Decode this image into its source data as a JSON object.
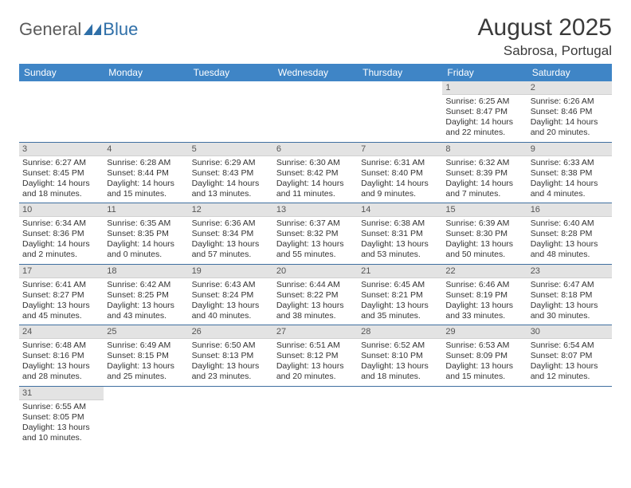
{
  "logo": {
    "general": "General",
    "blue": "Blue"
  },
  "header": {
    "title": "August 2025",
    "location": "Sabrosa, Portugal"
  },
  "colors": {
    "header_bg": "#3f85c6",
    "header_fg": "#ffffff",
    "daynum_bg": "#e3e3e3",
    "row_border": "#3f6fa0",
    "logo_gray": "#5b5b5b",
    "logo_blue": "#2f6fa8"
  },
  "weekdays": [
    "Sunday",
    "Monday",
    "Tuesday",
    "Wednesday",
    "Thursday",
    "Friday",
    "Saturday"
  ],
  "weeks": [
    [
      null,
      null,
      null,
      null,
      null,
      {
        "n": "1",
        "sr": "Sunrise: 6:25 AM",
        "ss": "Sunset: 8:47 PM",
        "dl1": "Daylight: 14 hours",
        "dl2": "and 22 minutes."
      },
      {
        "n": "2",
        "sr": "Sunrise: 6:26 AM",
        "ss": "Sunset: 8:46 PM",
        "dl1": "Daylight: 14 hours",
        "dl2": "and 20 minutes."
      }
    ],
    [
      {
        "n": "3",
        "sr": "Sunrise: 6:27 AM",
        "ss": "Sunset: 8:45 PM",
        "dl1": "Daylight: 14 hours",
        "dl2": "and 18 minutes."
      },
      {
        "n": "4",
        "sr": "Sunrise: 6:28 AM",
        "ss": "Sunset: 8:44 PM",
        "dl1": "Daylight: 14 hours",
        "dl2": "and 15 minutes."
      },
      {
        "n": "5",
        "sr": "Sunrise: 6:29 AM",
        "ss": "Sunset: 8:43 PM",
        "dl1": "Daylight: 14 hours",
        "dl2": "and 13 minutes."
      },
      {
        "n": "6",
        "sr": "Sunrise: 6:30 AM",
        "ss": "Sunset: 8:42 PM",
        "dl1": "Daylight: 14 hours",
        "dl2": "and 11 minutes."
      },
      {
        "n": "7",
        "sr": "Sunrise: 6:31 AM",
        "ss": "Sunset: 8:40 PM",
        "dl1": "Daylight: 14 hours",
        "dl2": "and 9 minutes."
      },
      {
        "n": "8",
        "sr": "Sunrise: 6:32 AM",
        "ss": "Sunset: 8:39 PM",
        "dl1": "Daylight: 14 hours",
        "dl2": "and 7 minutes."
      },
      {
        "n": "9",
        "sr": "Sunrise: 6:33 AM",
        "ss": "Sunset: 8:38 PM",
        "dl1": "Daylight: 14 hours",
        "dl2": "and 4 minutes."
      }
    ],
    [
      {
        "n": "10",
        "sr": "Sunrise: 6:34 AM",
        "ss": "Sunset: 8:36 PM",
        "dl1": "Daylight: 14 hours",
        "dl2": "and 2 minutes."
      },
      {
        "n": "11",
        "sr": "Sunrise: 6:35 AM",
        "ss": "Sunset: 8:35 PM",
        "dl1": "Daylight: 14 hours",
        "dl2": "and 0 minutes."
      },
      {
        "n": "12",
        "sr": "Sunrise: 6:36 AM",
        "ss": "Sunset: 8:34 PM",
        "dl1": "Daylight: 13 hours",
        "dl2": "and 57 minutes."
      },
      {
        "n": "13",
        "sr": "Sunrise: 6:37 AM",
        "ss": "Sunset: 8:32 PM",
        "dl1": "Daylight: 13 hours",
        "dl2": "and 55 minutes."
      },
      {
        "n": "14",
        "sr": "Sunrise: 6:38 AM",
        "ss": "Sunset: 8:31 PM",
        "dl1": "Daylight: 13 hours",
        "dl2": "and 53 minutes."
      },
      {
        "n": "15",
        "sr": "Sunrise: 6:39 AM",
        "ss": "Sunset: 8:30 PM",
        "dl1": "Daylight: 13 hours",
        "dl2": "and 50 minutes."
      },
      {
        "n": "16",
        "sr": "Sunrise: 6:40 AM",
        "ss": "Sunset: 8:28 PM",
        "dl1": "Daylight: 13 hours",
        "dl2": "and 48 minutes."
      }
    ],
    [
      {
        "n": "17",
        "sr": "Sunrise: 6:41 AM",
        "ss": "Sunset: 8:27 PM",
        "dl1": "Daylight: 13 hours",
        "dl2": "and 45 minutes."
      },
      {
        "n": "18",
        "sr": "Sunrise: 6:42 AM",
        "ss": "Sunset: 8:25 PM",
        "dl1": "Daylight: 13 hours",
        "dl2": "and 43 minutes."
      },
      {
        "n": "19",
        "sr": "Sunrise: 6:43 AM",
        "ss": "Sunset: 8:24 PM",
        "dl1": "Daylight: 13 hours",
        "dl2": "and 40 minutes."
      },
      {
        "n": "20",
        "sr": "Sunrise: 6:44 AM",
        "ss": "Sunset: 8:22 PM",
        "dl1": "Daylight: 13 hours",
        "dl2": "and 38 minutes."
      },
      {
        "n": "21",
        "sr": "Sunrise: 6:45 AM",
        "ss": "Sunset: 8:21 PM",
        "dl1": "Daylight: 13 hours",
        "dl2": "and 35 minutes."
      },
      {
        "n": "22",
        "sr": "Sunrise: 6:46 AM",
        "ss": "Sunset: 8:19 PM",
        "dl1": "Daylight: 13 hours",
        "dl2": "and 33 minutes."
      },
      {
        "n": "23",
        "sr": "Sunrise: 6:47 AM",
        "ss": "Sunset: 8:18 PM",
        "dl1": "Daylight: 13 hours",
        "dl2": "and 30 minutes."
      }
    ],
    [
      {
        "n": "24",
        "sr": "Sunrise: 6:48 AM",
        "ss": "Sunset: 8:16 PM",
        "dl1": "Daylight: 13 hours",
        "dl2": "and 28 minutes."
      },
      {
        "n": "25",
        "sr": "Sunrise: 6:49 AM",
        "ss": "Sunset: 8:15 PM",
        "dl1": "Daylight: 13 hours",
        "dl2": "and 25 minutes."
      },
      {
        "n": "26",
        "sr": "Sunrise: 6:50 AM",
        "ss": "Sunset: 8:13 PM",
        "dl1": "Daylight: 13 hours",
        "dl2": "and 23 minutes."
      },
      {
        "n": "27",
        "sr": "Sunrise: 6:51 AM",
        "ss": "Sunset: 8:12 PM",
        "dl1": "Daylight: 13 hours",
        "dl2": "and 20 minutes."
      },
      {
        "n": "28",
        "sr": "Sunrise: 6:52 AM",
        "ss": "Sunset: 8:10 PM",
        "dl1": "Daylight: 13 hours",
        "dl2": "and 18 minutes."
      },
      {
        "n": "29",
        "sr": "Sunrise: 6:53 AM",
        "ss": "Sunset: 8:09 PM",
        "dl1": "Daylight: 13 hours",
        "dl2": "and 15 minutes."
      },
      {
        "n": "30",
        "sr": "Sunrise: 6:54 AM",
        "ss": "Sunset: 8:07 PM",
        "dl1": "Daylight: 13 hours",
        "dl2": "and 12 minutes."
      }
    ],
    [
      {
        "n": "31",
        "sr": "Sunrise: 6:55 AM",
        "ss": "Sunset: 8:05 PM",
        "dl1": "Daylight: 13 hours",
        "dl2": "and 10 minutes."
      },
      null,
      null,
      null,
      null,
      null,
      null
    ]
  ]
}
